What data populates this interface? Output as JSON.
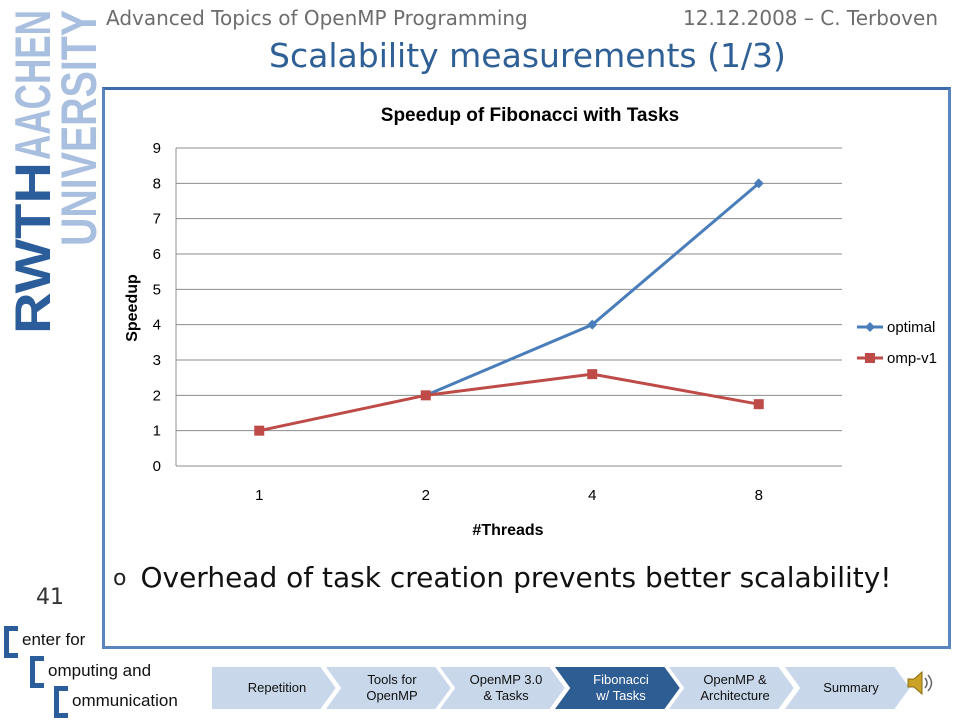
{
  "header": {
    "course": "Advanced Topics of OpenMP Programming",
    "date_author": "12.12.2008 – C. Terboven",
    "title": "Scalability measurements (1/3)"
  },
  "logo_text": {
    "rwth": "RWTH",
    "aachen": "AACHEN",
    "university": "UNIVERSITY"
  },
  "chart_data": {
    "type": "line",
    "title": "Speedup of Fibonacci with Tasks",
    "xlabel": "#Threads",
    "ylabel": "Speedup",
    "categories": [
      "1",
      "2",
      "4",
      "8"
    ],
    "ylim": [
      0,
      9
    ],
    "yticks": [
      "0",
      "1",
      "2",
      "3",
      "4",
      "5",
      "6",
      "7",
      "8",
      "9"
    ],
    "grid": true,
    "legend_position": "right",
    "series": [
      {
        "name": "optimal",
        "color": "#4a7ebb",
        "marker": "diamond",
        "values": [
          null,
          2,
          4,
          8
        ]
      },
      {
        "name": "omp-v1",
        "color": "#be4b48",
        "marker": "square",
        "values": [
          1,
          2,
          2.6,
          1.75
        ]
      }
    ]
  },
  "bullet": {
    "marker": "o",
    "text": "Overhead of task creation prevents better scalability!"
  },
  "page_number": "41",
  "ccc": {
    "line1": "enter for",
    "line2": "omputing and",
    "line3": "ommunication"
  },
  "nav": {
    "items": [
      {
        "label": "Repetition",
        "active": false
      },
      {
        "label": "Tools for\nOpenMP",
        "active": false
      },
      {
        "label": "OpenMP 3.0\n& Tasks",
        "active": false
      },
      {
        "label": "Fibonacci\nw/ Tasks",
        "active": true
      },
      {
        "label": "OpenMP &\nArchitecture",
        "active": false
      },
      {
        "label": "Summary",
        "active": false
      }
    ],
    "inactive_color": "#c9d7ea",
    "active_color": "#2e5d94"
  }
}
